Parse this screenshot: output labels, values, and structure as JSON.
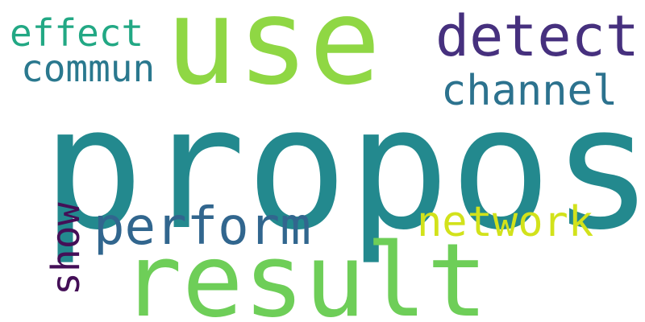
{
  "words": {
    "propos": {
      "text": "propos",
      "color": "#23898e"
    },
    "use": {
      "text": "use",
      "color": "#8fd744"
    },
    "result": {
      "text": "result",
      "color": "#6ece58"
    },
    "detect": {
      "text": "detect",
      "color": "#46307e"
    },
    "channel": {
      "text": "channel",
      "color": "#2c728e"
    },
    "perform": {
      "text": "perform",
      "color": "#31668e"
    },
    "network": {
      "text": "network",
      "color": "#d2e21b"
    },
    "effect": {
      "text": "effect",
      "color": "#22a884"
    },
    "commun": {
      "text": "commun",
      "color": "#2a788e"
    },
    "show": {
      "text": "show",
      "color": "#440f57"
    }
  }
}
